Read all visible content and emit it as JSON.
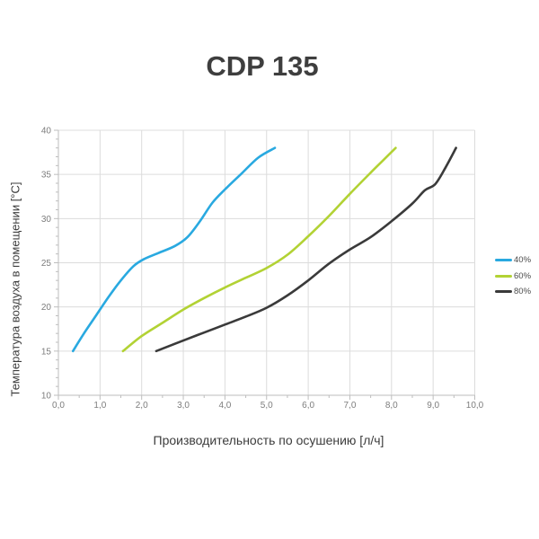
{
  "chart_data": {
    "type": "line",
    "title": "CDP 135",
    "xlabel": "Производительность по осушению [л/ч]",
    "ylabel": "Температура воздуха в помещении [°C]",
    "xlim": [
      0,
      10
    ],
    "ylim": [
      10,
      40
    ],
    "x_ticks": [
      0,
      1,
      2,
      3,
      4,
      5,
      6,
      7,
      8,
      9,
      10
    ],
    "x_tick_labels": [
      "0,0",
      "1,0",
      "2,0",
      "3,0",
      "4,0",
      "5,0",
      "6,0",
      "7,0",
      "8,0",
      "9,0",
      "10,0"
    ],
    "y_ticks": [
      10,
      15,
      20,
      25,
      30,
      35,
      40
    ],
    "y_tick_labels": [
      "10",
      "15",
      "20",
      "25",
      "30",
      "35",
      "40"
    ],
    "x_minor_step": 0.5,
    "y_minor_step": 1,
    "grid": true,
    "legend_position": "right",
    "grid_color": "#dcdcdc",
    "axis_color": "#bdbdbd",
    "tick_label_color": "#7d7d7d",
    "series": [
      {
        "name": "40%",
        "color": "#29a9e0",
        "points": [
          [
            0.35,
            15
          ],
          [
            0.6,
            16.9
          ],
          [
            0.9,
            19.0
          ],
          [
            1.2,
            21.1
          ],
          [
            1.5,
            23.0
          ],
          [
            1.8,
            24.6
          ],
          [
            2.05,
            25.4
          ],
          [
            2.4,
            26.1
          ],
          [
            2.8,
            26.9
          ],
          [
            3.1,
            27.9
          ],
          [
            3.4,
            29.7
          ],
          [
            3.7,
            31.8
          ],
          [
            4.0,
            33.3
          ],
          [
            4.4,
            35.1
          ],
          [
            4.8,
            36.9
          ],
          [
            5.2,
            38.0
          ]
        ]
      },
      {
        "name": "60%",
        "color": "#b2d234",
        "points": [
          [
            1.55,
            15
          ],
          [
            2.0,
            16.7
          ],
          [
            2.5,
            18.2
          ],
          [
            3.0,
            19.7
          ],
          [
            3.5,
            21.0
          ],
          [
            4.0,
            22.2
          ],
          [
            4.5,
            23.3
          ],
          [
            5.0,
            24.4
          ],
          [
            5.5,
            25.9
          ],
          [
            6.0,
            28.0
          ],
          [
            6.5,
            30.3
          ],
          [
            7.0,
            32.8
          ],
          [
            7.5,
            35.2
          ],
          [
            7.8,
            36.6
          ],
          [
            8.1,
            38.0
          ]
        ]
      },
      {
        "name": "80%",
        "color": "#3a3a3a",
        "points": [
          [
            2.35,
            15
          ],
          [
            3.0,
            16.2
          ],
          [
            3.5,
            17.1
          ],
          [
            4.0,
            18.0
          ],
          [
            4.5,
            18.9
          ],
          [
            5.0,
            19.9
          ],
          [
            5.5,
            21.3
          ],
          [
            6.0,
            23.0
          ],
          [
            6.5,
            24.9
          ],
          [
            7.0,
            26.5
          ],
          [
            7.5,
            27.9
          ],
          [
            8.0,
            29.7
          ],
          [
            8.5,
            31.7
          ],
          [
            8.8,
            33.2
          ],
          [
            9.05,
            33.9
          ],
          [
            9.3,
            35.8
          ],
          [
            9.55,
            38.0
          ]
        ]
      }
    ]
  }
}
